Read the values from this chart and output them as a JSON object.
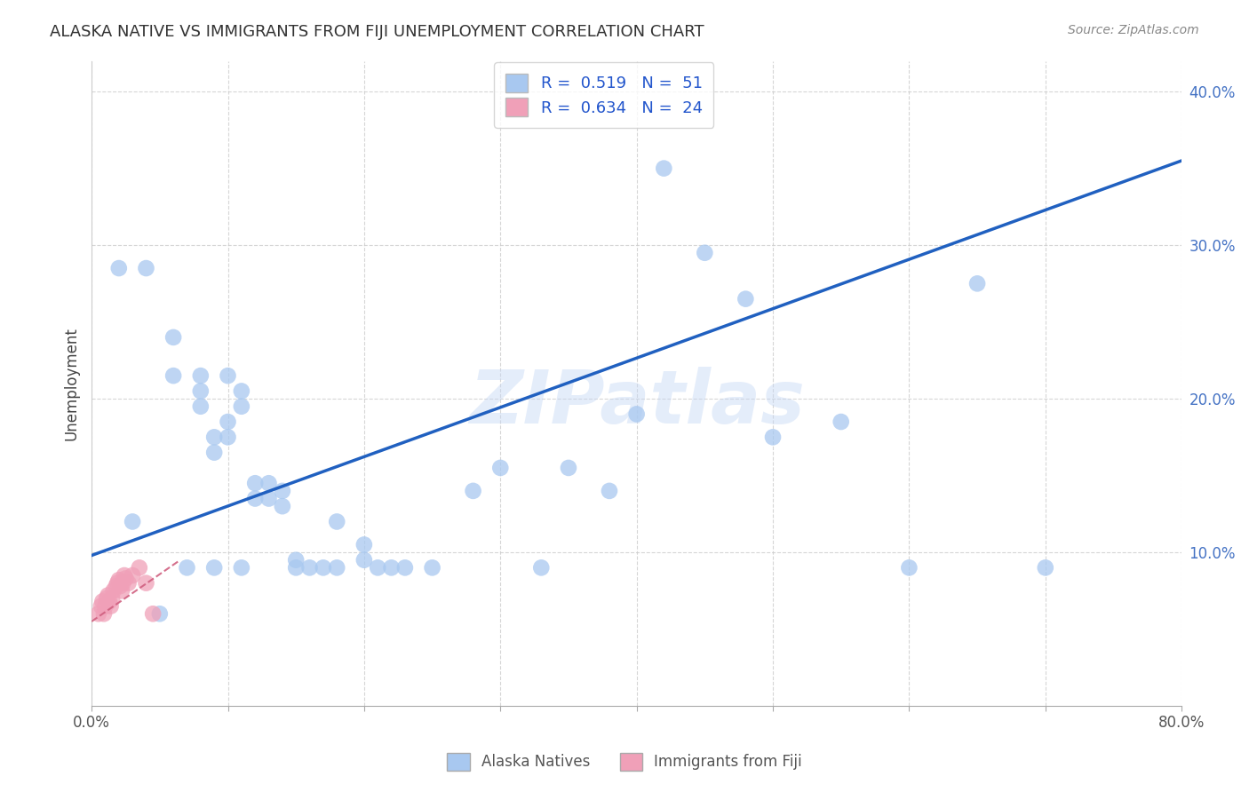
{
  "title": "ALASKA NATIVE VS IMMIGRANTS FROM FIJI UNEMPLOYMENT CORRELATION CHART",
  "source": "Source: ZipAtlas.com",
  "ylabel": "Unemployment",
  "xlim": [
    0,
    0.8
  ],
  "ylim": [
    0.0,
    0.42
  ],
  "yticks_right": [
    0.1,
    0.2,
    0.3,
    0.4
  ],
  "yticklabels_right": [
    "10.0%",
    "20.0%",
    "30.0%",
    "40.0%"
  ],
  "legend_r1_val": "0.519",
  "legend_n1_val": "51",
  "legend_r2_val": "0.634",
  "legend_n2_val": "24",
  "blue_color": "#a8c8f0",
  "pink_color": "#f0a0b8",
  "regression_blue_color": "#2060c0",
  "regression_pink_color": "#d06080",
  "watermark": "ZIPatlas",
  "blue_scatter_x": [
    0.02,
    0.04,
    0.06,
    0.06,
    0.08,
    0.08,
    0.08,
    0.09,
    0.09,
    0.1,
    0.1,
    0.1,
    0.11,
    0.11,
    0.12,
    0.12,
    0.13,
    0.13,
    0.14,
    0.14,
    0.15,
    0.15,
    0.16,
    0.17,
    0.18,
    0.18,
    0.2,
    0.2,
    0.21,
    0.22,
    0.23,
    0.25,
    0.28,
    0.3,
    0.33,
    0.35,
    0.38,
    0.4,
    0.42,
    0.45,
    0.48,
    0.5,
    0.55,
    0.6,
    0.65,
    0.7,
    0.03,
    0.05,
    0.07,
    0.09,
    0.11
  ],
  "blue_scatter_y": [
    0.285,
    0.285,
    0.24,
    0.215,
    0.215,
    0.205,
    0.195,
    0.175,
    0.165,
    0.215,
    0.185,
    0.175,
    0.205,
    0.195,
    0.135,
    0.145,
    0.145,
    0.135,
    0.14,
    0.13,
    0.095,
    0.09,
    0.09,
    0.09,
    0.09,
    0.12,
    0.105,
    0.095,
    0.09,
    0.09,
    0.09,
    0.09,
    0.14,
    0.155,
    0.09,
    0.155,
    0.14,
    0.19,
    0.35,
    0.295,
    0.265,
    0.175,
    0.185,
    0.09,
    0.275,
    0.09,
    0.12,
    0.06,
    0.09,
    0.09,
    0.09
  ],
  "pink_scatter_x": [
    0.005,
    0.007,
    0.008,
    0.009,
    0.01,
    0.011,
    0.012,
    0.013,
    0.014,
    0.015,
    0.016,
    0.018,
    0.019,
    0.02,
    0.021,
    0.022,
    0.023,
    0.024,
    0.025,
    0.027,
    0.03,
    0.035,
    0.04,
    0.045
  ],
  "pink_scatter_y": [
    0.06,
    0.065,
    0.068,
    0.06,
    0.065,
    0.07,
    0.072,
    0.068,
    0.065,
    0.07,
    0.075,
    0.078,
    0.08,
    0.082,
    0.078,
    0.075,
    0.08,
    0.085,
    0.083,
    0.08,
    0.085,
    0.09,
    0.08,
    0.06
  ],
  "blue_line_x": [
    0.0,
    0.8
  ],
  "blue_line_y": [
    0.098,
    0.355
  ],
  "pink_line_x": [
    0.0,
    0.065
  ],
  "pink_line_y": [
    0.055,
    0.095
  ]
}
